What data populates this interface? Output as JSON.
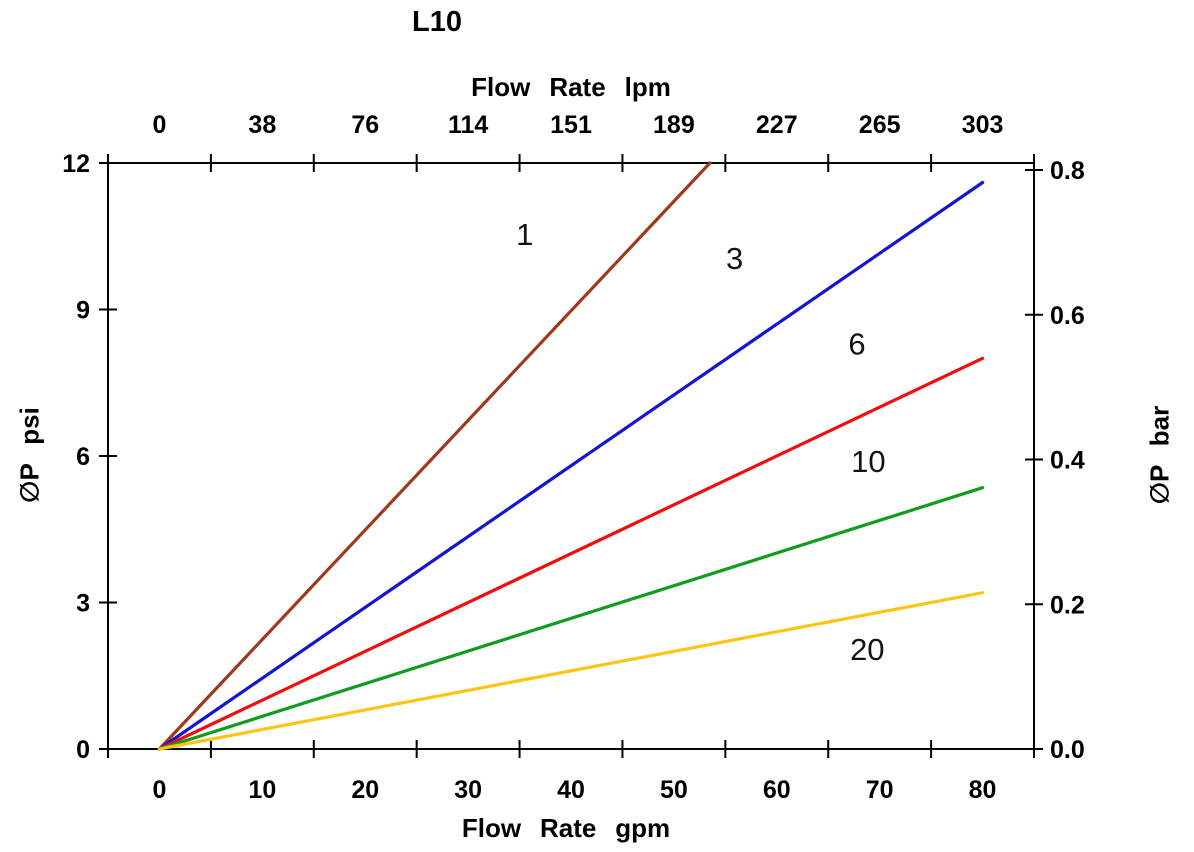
{
  "chart_data": {
    "type": "line",
    "title": "L10",
    "top_axis": {
      "label": "Flow Rate lpm",
      "tick_labels": [
        "0",
        "38",
        "76",
        "114",
        "151",
        "189",
        "227",
        "265",
        "303"
      ]
    },
    "bottom_axis": {
      "label": "Flow Rate gpm",
      "tick_labels": [
        "0",
        "10",
        "20",
        "30",
        "40",
        "50",
        "60",
        "70",
        "80"
      ],
      "range": [
        0,
        80
      ]
    },
    "left_axis": {
      "label": "∅P psi",
      "ticks": [
        0,
        3,
        6,
        9,
        12
      ],
      "range": [
        0,
        12
      ]
    },
    "right_axis": {
      "label": "∅P bar",
      "tick_labels": [
        "0.0",
        "0.2",
        "0.4",
        "0.6",
        "0.8"
      ],
      "range": [
        0,
        0.8
      ]
    },
    "grid": "off",
    "legend": "inline-labels",
    "axis_color": "#000000",
    "series": [
      {
        "name": "1",
        "color": "#9e3a1c",
        "points": [
          [
            0,
            0
          ],
          [
            53.5,
            12.0
          ]
        ],
        "label_at": [
          35.5,
          10.55
        ]
      },
      {
        "name": "3",
        "color": "#1414d2",
        "points": [
          [
            0,
            0
          ],
          [
            80,
            11.6
          ]
        ],
        "label_at": [
          55.9,
          10.05
        ]
      },
      {
        "name": "6",
        "color": "#f20c0c",
        "points": [
          [
            0,
            0
          ],
          [
            80,
            8.0
          ]
        ],
        "label_at": [
          67.8,
          8.3
        ]
      },
      {
        "name": "10",
        "color": "#109c1d",
        "points": [
          [
            0,
            0
          ],
          [
            80,
            5.35
          ]
        ],
        "label_at": [
          68.9,
          5.9
        ]
      },
      {
        "name": "20",
        "color": "#fdc414",
        "points": [
          [
            0,
            0
          ],
          [
            80,
            3.2
          ]
        ],
        "label_at": [
          68.8,
          2.05
        ]
      }
    ]
  }
}
